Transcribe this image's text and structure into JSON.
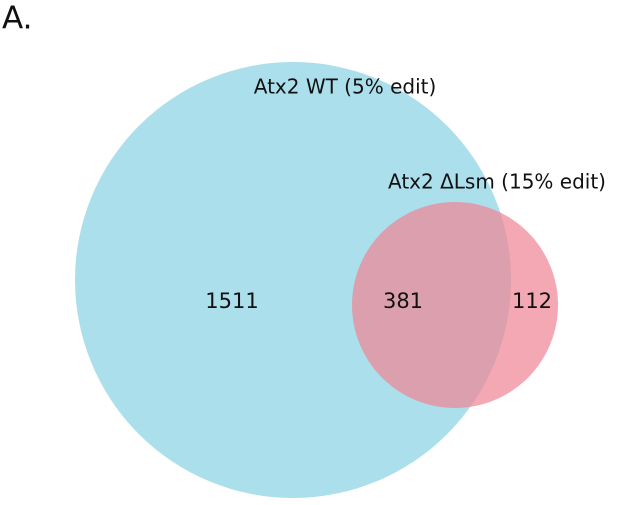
{
  "panel_label": "A.",
  "chart_data": {
    "type": "venn",
    "sets": [
      {
        "name": "Atx2 WT (5% edit)",
        "color": "#abdfeb",
        "value": 1511
      },
      {
        "name": "Atx2 ΔLsm (15% edit)",
        "color": "#ef8795",
        "value": 112
      }
    ],
    "intersection": 381
  }
}
